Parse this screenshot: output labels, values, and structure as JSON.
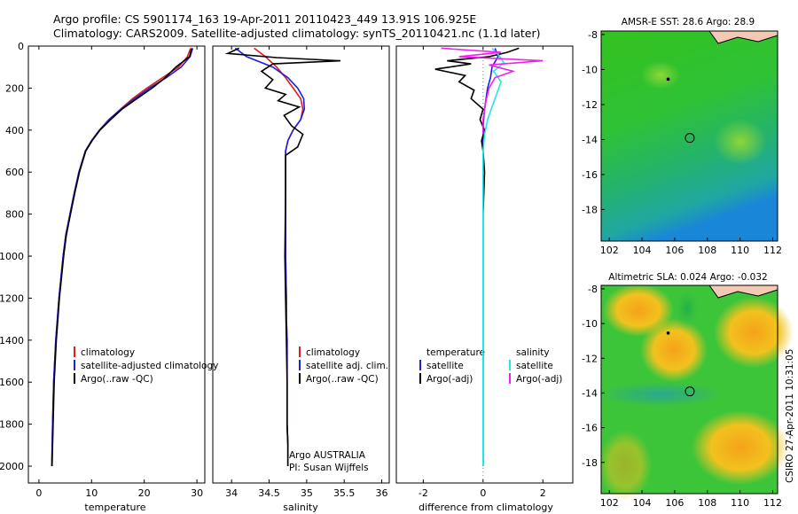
{
  "figure": {
    "title_line1": "Argo profile: CS 5901174_163 19-Apr-2011 20110423_449 13.91S 106.925E",
    "title_line2": "Climatology: CARS2009. Satellite-adjusted climatology: synTS_20110421.nc (1.1d later)",
    "credit": "CSIRO 27-Apr-2011 10:31:05"
  },
  "colors": {
    "climatology": "#e41a1c",
    "satellite": "#1f1fe0",
    "argo": "#000000",
    "sal_satellite": "#22e6e6",
    "sal_argo": "#ee22ee",
    "land": "#f3c9b4"
  },
  "chart_data": [
    {
      "type": "line",
      "name": "temperature-profile",
      "xlabel": "temperature",
      "ylabel": "",
      "xlim": [
        -2,
        31.5
      ],
      "ylim": [
        2080,
        0
      ],
      "xticks": [
        0,
        10,
        20,
        30
      ],
      "yticks": [
        0,
        200,
        400,
        600,
        800,
        1000,
        1200,
        1400,
        1600,
        1800,
        2000
      ],
      "legend": [
        "climatology",
        "satellite-adjusted climatology",
        "Argo(..raw -QC)"
      ],
      "legend_placement": "lower-right",
      "series": [
        {
          "name": "climatology",
          "color_key": "climatology",
          "x": [
            28.8,
            28.2,
            26.5,
            23.5,
            20.5,
            17.8,
            15.5,
            13.3,
            11.5,
            10.0,
            8.8,
            7.6,
            6.7,
            5.9,
            5.1,
            4.6,
            4.2,
            3.8,
            3.5,
            3.2,
            3.0,
            2.8,
            2.6,
            2.45
          ],
          "y": [
            10,
            50,
            100,
            150,
            200,
            250,
            300,
            350,
            400,
            450,
            500,
            600,
            700,
            800,
            900,
            1000,
            1100,
            1200,
            1300,
            1400,
            1500,
            1600,
            1800,
            2000
          ]
        },
        {
          "name": "satellite-adjusted climatology",
          "color_key": "satellite",
          "x": [
            29.2,
            28.7,
            27.0,
            24.2,
            21.0,
            18.2,
            15.6,
            13.3,
            11.5,
            10.0,
            8.8,
            7.6,
            6.7,
            5.9,
            5.1,
            4.6,
            4.2,
            3.8,
            3.5,
            3.2,
            3.0,
            2.8,
            2.6,
            2.45
          ],
          "y": [
            10,
            50,
            100,
            150,
            200,
            250,
            300,
            350,
            400,
            450,
            500,
            600,
            700,
            800,
            900,
            1000,
            1100,
            1200,
            1300,
            1400,
            1500,
            1600,
            1800,
            2000
          ]
        },
        {
          "name": "Argo(..raw -QC)",
          "color_key": "argo",
          "x": [
            29.0,
            28.6,
            26.0,
            24.0,
            21.5,
            18.6,
            15.8,
            13.6,
            11.6,
            10.1,
            8.9,
            7.7,
            6.8,
            6.0,
            5.2,
            4.7,
            4.3,
            3.9,
            3.6,
            3.3,
            3.1,
            2.9,
            2.7,
            2.5
          ],
          "y": [
            10,
            50,
            100,
            150,
            200,
            250,
            300,
            350,
            400,
            450,
            500,
            600,
            700,
            800,
            900,
            1000,
            1100,
            1200,
            1300,
            1400,
            1500,
            1600,
            1800,
            2000
          ]
        }
      ]
    },
    {
      "type": "line",
      "name": "salinity-profile",
      "xlabel": "salinity",
      "xlim": [
        33.75,
        36.1
      ],
      "ylim": [
        2080,
        0
      ],
      "xticks": [
        34,
        34.5,
        35,
        35.5,
        36
      ],
      "legend": [
        "climatology",
        "satellite adj. clim.",
        "Argo(..raw -QC)"
      ],
      "legend_placement": "lower-right",
      "annotation_line1": "Argo AUSTRALIA",
      "annotation_line2": "PI: Susan Wijffels",
      "series": [
        {
          "name": "climatology",
          "color_key": "climatology",
          "x": [
            34.3,
            34.45,
            34.6,
            34.72,
            34.82,
            34.92,
            34.95,
            34.92,
            34.82,
            34.75,
            34.72,
            34.72,
            34.72,
            34.72,
            34.73,
            34.73,
            34.74,
            34.74,
            34.74,
            34.74,
            34.74,
            34.75,
            34.75
          ],
          "y": [
            10,
            50,
            100,
            150,
            200,
            250,
            300,
            350,
            400,
            450,
            500,
            600,
            800,
            1000,
            1200,
            1300,
            1400,
            1500,
            1600,
            1700,
            1800,
            1900,
            2000
          ]
        },
        {
          "name": "satellite adj. clim.",
          "color_key": "satellite",
          "x": [
            34.05,
            34.2,
            34.55,
            34.75,
            34.88,
            34.96,
            34.97,
            34.92,
            34.82,
            34.75,
            34.72,
            34.72,
            34.72,
            34.72,
            34.73,
            34.73,
            34.74,
            34.74,
            34.74,
            34.74,
            34.74,
            34.75,
            34.75
          ],
          "y": [
            10,
            50,
            100,
            150,
            200,
            250,
            300,
            350,
            400,
            450,
            500,
            600,
            800,
            1000,
            1200,
            1300,
            1400,
            1500,
            1600,
            1700,
            1800,
            1900,
            2000
          ]
        },
        {
          "name": "Argo(..raw -QC)",
          "color_key": "argo",
          "x": [
            34.1,
            33.95,
            34.6,
            35.45,
            34.55,
            34.4,
            34.55,
            34.45,
            34.72,
            34.62,
            34.9,
            34.7,
            34.8,
            34.95,
            34.88,
            34.72,
            34.72,
            34.71,
            34.72,
            34.73,
            34.74,
            34.74,
            34.75,
            34.75
          ],
          "y": [
            10,
            35,
            55,
            70,
            85,
            120,
            160,
            200,
            230,
            260,
            290,
            330,
            380,
            420,
            480,
            520,
            700,
            1000,
            1200,
            1400,
            1600,
            1800,
            1900,
            2000
          ]
        }
      ]
    },
    {
      "type": "line",
      "name": "difference-profile",
      "xlabel": "difference from climatology",
      "xlim": [
        -2.9,
        3.0
      ],
      "ylim": [
        2080,
        0
      ],
      "xticks": [
        -2,
        0,
        2
      ],
      "legend": [
        "temperature",
        "satellite",
        "Argo(-adj)",
        "salinity",
        "satellite",
        "Argo(-adj)"
      ],
      "legend_placement": "lower-center",
      "series": [
        {
          "name": "temperature satellite",
          "color_key": "satellite",
          "x": [
            0.4,
            0.5,
            0.3,
            0.25,
            0.15,
            0.1,
            0.05,
            0.02,
            0.0,
            0.0,
            0.0,
            0.0
          ],
          "y": [
            10,
            50,
            100,
            150,
            200,
            250,
            300,
            350,
            400,
            500,
            1000,
            2000
          ]
        },
        {
          "name": "temperature Argo(-adj)",
          "color_key": "argo",
          "x": [
            1.2,
            0.8,
            0.2,
            -1.2,
            -0.4,
            -1.6,
            -0.6,
            -0.8,
            -0.3,
            -0.4,
            0.0,
            -0.1,
            0.05,
            -0.05,
            0.0,
            0.05,
            0.0,
            0.0,
            0.0,
            0.0
          ],
          "y": [
            10,
            30,
            50,
            70,
            85,
            110,
            140,
            170,
            210,
            250,
            300,
            350,
            400,
            450,
            500,
            600,
            800,
            1000,
            1500,
            2000
          ]
        },
        {
          "name": "salinity satellite",
          "color_key": "sal_satellite",
          "x": [
            0.3,
            0.5,
            0.7,
            0.35,
            0.6,
            0.45,
            0.3,
            0.15,
            0.05,
            0.0,
            0.0,
            0.0
          ],
          "y": [
            10,
            40,
            80,
            120,
            170,
            230,
            290,
            350,
            420,
            500,
            1000,
            2000
          ]
        },
        {
          "name": "salinity Argo(-adj)",
          "color_key": "sal_argo",
          "x": [
            -1.4,
            0.6,
            -0.8,
            2.0,
            0.2,
            1.0,
            0.4,
            0.2,
            0.1,
            0.0,
            0.0
          ],
          "y": [
            10,
            30,
            50,
            70,
            90,
            120,
            150,
            200,
            260,
            350,
            420
          ]
        }
      ]
    }
  ],
  "maps": {
    "sst": {
      "title": "AMSR-E SST: 28.6 Argo: 28.9",
      "xticks": [
        "102",
        "104",
        "106",
        "108",
        "110",
        "112"
      ],
      "yticks": [
        "-8",
        "-10",
        "-12",
        "-14",
        "-16",
        "-18"
      ],
      "xlim": [
        101.5,
        112.3
      ],
      "ylim": [
        -19.8,
        -7.8
      ],
      "argo_position": [
        106.925,
        -13.91
      ],
      "track_point": [
        105.6,
        -10.55
      ]
    },
    "sla": {
      "title": "Altimetric SLA: 0.024 Argo: -0.032",
      "xticks": [
        "102",
        "104",
        "106",
        "108",
        "110",
        "112"
      ],
      "yticks": [
        "-8",
        "-10",
        "-12",
        "-14",
        "-16",
        "-18"
      ],
      "xlim": [
        101.5,
        112.3
      ],
      "ylim": [
        -19.8,
        -7.8
      ],
      "argo_position": [
        106.925,
        -13.91
      ],
      "track_point": [
        105.6,
        -10.55
      ]
    }
  }
}
